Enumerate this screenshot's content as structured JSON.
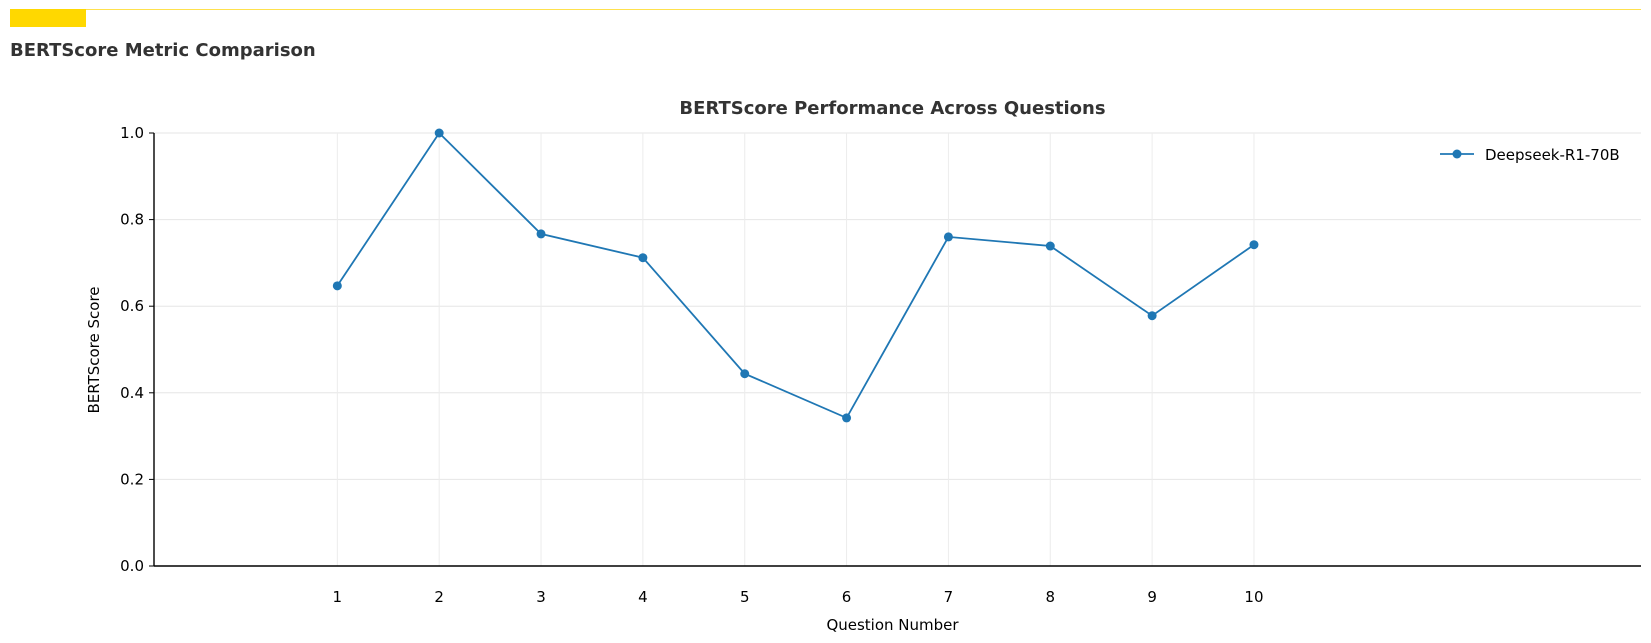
{
  "page": {
    "title": "BERTScore Metric Comparison",
    "accent_color": "#ffd800"
  },
  "chart_data": {
    "type": "line",
    "title": "BERTScore Performance Across Questions",
    "xlabel": "Question Number",
    "ylabel": "BERTScore Score",
    "x": [
      1,
      2,
      3,
      4,
      5,
      6,
      7,
      8,
      9,
      10
    ],
    "xlim": [
      -0.8,
      13.8
    ],
    "ylim": [
      0,
      1
    ],
    "yticks": [
      0.0,
      0.2,
      0.4,
      0.6,
      0.8,
      1.0
    ],
    "ytick_labels": [
      "0.0",
      "0.2",
      "0.4",
      "0.6",
      "0.8",
      "1.0"
    ],
    "xtick_labels": [
      "1",
      "2",
      "3",
      "4",
      "5",
      "6",
      "7",
      "8",
      "9",
      "10"
    ],
    "grid": true,
    "legend_position": "top-right",
    "series": [
      {
        "name": "Deepseek-R1-70B",
        "color": "#1f77b4",
        "marker": "circle",
        "values": [
          0.647,
          1.0,
          0.767,
          0.712,
          0.444,
          0.342,
          0.76,
          0.739,
          0.578,
          0.742
        ]
      }
    ]
  }
}
